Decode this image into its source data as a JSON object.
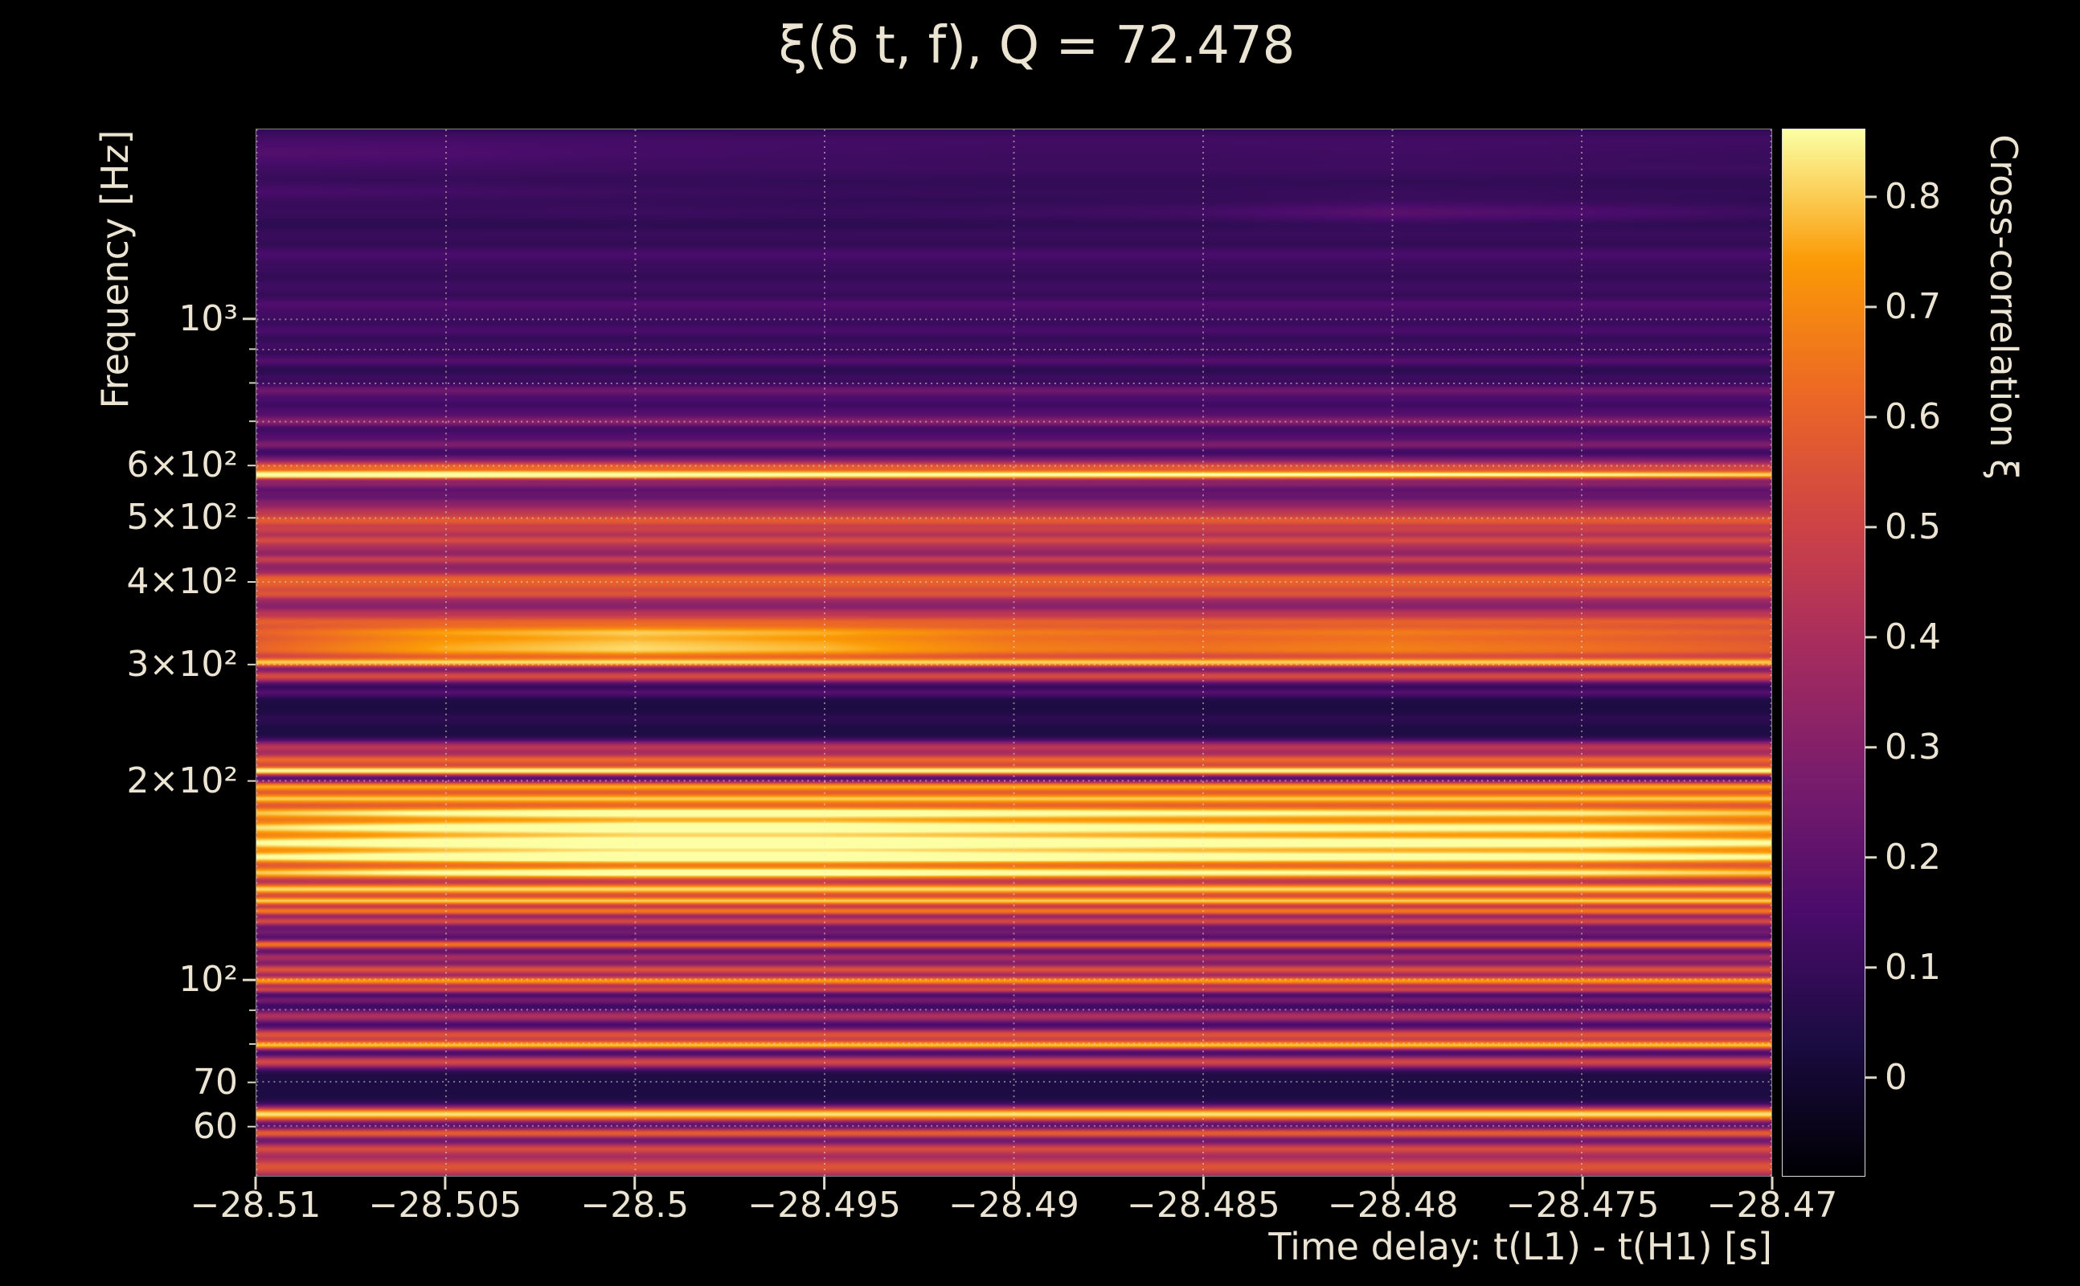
{
  "figure": {
    "background": "#000000",
    "text_color": "#ece4d2"
  },
  "chart_data": {
    "type": "heatmap",
    "title": "ξ(δ t, f), Q = 72.478",
    "xlabel": "Time delay: t(L1) - t(H1) [s]",
    "ylabel": "Frequency [Hz]",
    "x_range": [
      -28.51,
      -28.47
    ],
    "x_ticks": [
      {
        "value": -28.51,
        "label": "−28.51"
      },
      {
        "value": -28.505,
        "label": "−28.505"
      },
      {
        "value": -28.5,
        "label": "−28.5"
      },
      {
        "value": -28.495,
        "label": "−28.495"
      },
      {
        "value": -28.49,
        "label": "−28.49"
      },
      {
        "value": -28.485,
        "label": "−28.485"
      },
      {
        "value": -28.48,
        "label": "−28.48"
      },
      {
        "value": -28.475,
        "label": "−28.475"
      },
      {
        "value": -28.47,
        "label": "−28.47"
      }
    ],
    "y_scale": "log",
    "y_range_hz": [
      50.4,
      1940
    ],
    "y_ticks": [
      {
        "value": 1000,
        "label": "10³",
        "major": true
      },
      {
        "value": 600,
        "label": "6×10²",
        "major": false
      },
      {
        "value": 500,
        "label": "5×10²",
        "major": false
      },
      {
        "value": 400,
        "label": "4×10²",
        "major": false
      },
      {
        "value": 300,
        "label": "3×10²",
        "major": false
      },
      {
        "value": 200,
        "label": "2×10²",
        "major": false
      },
      {
        "value": 100,
        "label": "10²",
        "major": true
      },
      {
        "value": 70,
        "label": "70",
        "major": false
      },
      {
        "value": 60,
        "label": "60",
        "major": false
      }
    ],
    "y_minor_ticks": [
      80,
      90,
      700,
      800,
      900
    ],
    "grid": {
      "color": "#ffffff",
      "opacity": 0.5,
      "style": "dotted",
      "vertical": true,
      "horizontal": true
    },
    "colorbar": {
      "label": "Cross-correlation ξ",
      "colormap": "inferno",
      "vmin": -0.09,
      "vmax": 0.862,
      "ticks": [
        {
          "value": 0.8,
          "label": "0.8"
        },
        {
          "value": 0.7,
          "label": "0.7"
        },
        {
          "value": 0.6,
          "label": "0.6"
        },
        {
          "value": 0.5,
          "label": "0.5"
        },
        {
          "value": 0.4,
          "label": "0.4"
        },
        {
          "value": 0.3,
          "label": "0.3"
        },
        {
          "value": 0.2,
          "label": "0.2"
        },
        {
          "value": 0.1,
          "label": "0.1"
        },
        {
          "value": 0,
          "label": "0"
        }
      ]
    },
    "background_value": 0.035,
    "x_profiles": {
      "cb": [
        0.9,
        1.0,
        1.06,
        1.06,
        1.02,
        0.99,
        0.97,
        0.96,
        0.9
      ],
      "lb": [
        0.8,
        1.02,
        1.1,
        1.04,
        0.9,
        0.86,
        0.9,
        0.85,
        0.78
      ],
      "l6": [
        1.04,
        1.07,
        1.04,
        1.0,
        0.99,
        0.97,
        0.94,
        0.9,
        0.85
      ],
      "tr": [
        0.6,
        0.6,
        0.7,
        0.6,
        0.7,
        0.85,
        1.35,
        1.1,
        0.7
      ],
      "tl": [
        1.3,
        1.15,
        0.9,
        0.8,
        0.7,
        0.7,
        0.8,
        0.7,
        0.6
      ]
    },
    "bands": [
      [
        52,
        0.014,
        0.52
      ],
      [
        55.5,
        0.007,
        0.42
      ],
      [
        58.5,
        0.006,
        0.55
      ],
      [
        62.5,
        0.008,
        0.8
      ],
      [
        75,
        0.007,
        0.48
      ],
      [
        79.5,
        0.005,
        0.72
      ],
      [
        82.5,
        0.007,
        0.52
      ],
      [
        88,
        0.007,
        0.38
      ],
      [
        93,
        0.005,
        0.22
      ],
      [
        96.5,
        0.004,
        0.45
      ],
      [
        99.5,
        0.005,
        0.7
      ],
      [
        103.5,
        0.006,
        0.52
      ],
      [
        108,
        0.006,
        0.36
      ],
      [
        113,
        0.005,
        0.62
      ],
      [
        118,
        0.006,
        0.22
      ],
      [
        122.5,
        0.005,
        0.48
      ],
      [
        127,
        0.005,
        0.62
      ],
      [
        131.5,
        0.005,
        0.74
      ],
      [
        137,
        0.007,
        0.78
      ],
      [
        145,
        0.008,
        0.84,
        "cb"
      ],
      [
        153,
        0.008,
        0.87,
        "cb"
      ],
      [
        161,
        0.009,
        0.88,
        "cb"
      ],
      [
        170,
        0.009,
        0.84,
        "cb"
      ],
      [
        179,
        0.008,
        0.8,
        "cb"
      ],
      [
        188,
        0.007,
        0.74
      ],
      [
        196,
        0.006,
        0.7
      ],
      [
        207,
        0.005,
        0.82
      ],
      [
        215,
        0.007,
        0.58
      ],
      [
        225,
        0.007,
        0.4
      ],
      [
        248,
        0.006,
        0.04
      ],
      [
        272,
        0.005,
        0.14
      ],
      [
        288,
        0.007,
        0.5
      ],
      [
        302,
        0.005,
        0.7
      ],
      [
        313,
        0.008,
        0.55,
        "lb"
      ],
      [
        325,
        0.009,
        0.58,
        "lb"
      ],
      [
        337,
        0.007,
        0.52,
        "lb"
      ],
      [
        349,
        0.007,
        0.5
      ],
      [
        361,
        0.006,
        0.32
      ],
      [
        372,
        0.005,
        0.22
      ],
      [
        383,
        0.006,
        0.48
      ],
      [
        395,
        0.006,
        0.44
      ],
      [
        406,
        0.006,
        0.48
      ],
      [
        419,
        0.006,
        0.24
      ],
      [
        433,
        0.006,
        0.42
      ],
      [
        449,
        0.006,
        0.3
      ],
      [
        463,
        0.006,
        0.45
      ],
      [
        479,
        0.006,
        0.38
      ],
      [
        496,
        0.007,
        0.52
      ],
      [
        513,
        0.006,
        0.32
      ],
      [
        529,
        0.006,
        0.24
      ],
      [
        546,
        0.005,
        0.16
      ],
      [
        563,
        0.005,
        0.27
      ],
      [
        581,
        0.0045,
        0.86,
        "l6"
      ],
      [
        598,
        0.006,
        0.52,
        "l6"
      ],
      [
        616,
        0.006,
        0.16
      ],
      [
        646,
        0.006,
        0.24
      ],
      [
        669,
        0.006,
        0.12
      ],
      [
        700,
        0.006,
        0.27
      ],
      [
        726,
        0.007,
        0.12
      ],
      [
        756,
        0.006,
        0.1
      ],
      [
        781,
        0.006,
        0.2
      ],
      [
        816,
        0.007,
        0.08
      ],
      [
        866,
        0.007,
        0.14
      ],
      [
        912,
        0.007,
        0.09
      ],
      [
        962,
        0.008,
        0.11
      ],
      [
        1012,
        0.008,
        0.08
      ],
      [
        1056,
        0.008,
        0.12
      ],
      [
        1122,
        0.009,
        0.09
      ],
      [
        1192,
        0.009,
        0.07
      ],
      [
        1256,
        0.009,
        0.11
      ],
      [
        1342,
        0.01,
        0.07
      ],
      [
        1452,
        0.012,
        0.11,
        "tr"
      ],
      [
        1562,
        0.012,
        0.08,
        "tl"
      ],
      [
        1682,
        0.012,
        0.07
      ],
      [
        1782,
        0.012,
        0.09,
        "tl"
      ],
      [
        1882,
        0.012,
        0.08
      ]
    ]
  }
}
